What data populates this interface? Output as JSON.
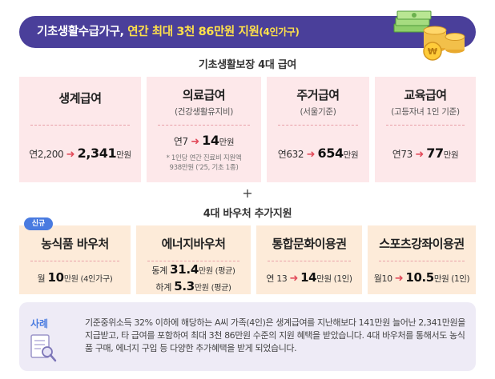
{
  "banner": {
    "title_main": "기초생활수급가구, ",
    "title_highlight": "연간 최대 3천 86만원 지원",
    "title_small": "(4인가구)"
  },
  "section1_title": "기초생활보장 4대 급여",
  "benefits": [
    {
      "title": "생계급여",
      "sub": "",
      "from": "연2,200",
      "to": "2,341",
      "unit": "만원",
      "note": []
    },
    {
      "title": "의료급여",
      "sub": "(건강생활유지비)",
      "from": "연7",
      "to": "14",
      "unit": "만원",
      "note": [
        "* 1인당 연간 진료비 지원액",
        "938만원 ('25, 기초 1종)"
      ]
    },
    {
      "title": "주거급여",
      "sub": "(서울기준)",
      "from": "연632",
      "to": "654",
      "unit": "만원",
      "note": []
    },
    {
      "title": "교육급여",
      "sub": "(고등자녀 1인 기준)",
      "from": "연73",
      "to": "77",
      "unit": "만원",
      "note": []
    }
  ],
  "plus_sign": "+",
  "section2_title": "4대 바우처 추가지원",
  "new_tag": "신규",
  "vouchers": [
    {
      "title": "농식품 바우처",
      "prefix": "월 ",
      "value": "10",
      "unit": "만원",
      "suffix": " (4인가구)"
    },
    {
      "title": "에너지바우처",
      "lines": [
        {
          "prefix": "동계 ",
          "value": "31.4",
          "unit": "만원",
          "suffix": " (평균)"
        },
        {
          "prefix": "하계 ",
          "value": "5.3",
          "unit": "만원",
          "suffix": " (평균)"
        }
      ]
    },
    {
      "title": "통합문화이용권",
      "from": "연 13",
      "to": "14",
      "unit": "만원",
      "suffix": " (1인)"
    },
    {
      "title": "스포츠강좌이용권",
      "from": "월10",
      "to": "10.5",
      "unit": "만원",
      "suffix": " (1인)"
    }
  ],
  "case": {
    "label": "사례",
    "text": "기준중위소득 32% 이하에 해당하는 A씨 가족(4인)은 생계급여를 지난해보다 141만원 늘어난 2,341만원을 지급받고, 타 급여를 포함하여 최대 3천 86만원 수준의 지원 혜택을 받았습니다. 4대 바우처를 통해서도 농식품 구매, 에너지 구입 등 다양한 추가혜택을 받게 되었습니다."
  },
  "colors": {
    "banner": "#4a3f9a",
    "highlight": "#ffe14a",
    "benefit_card": "#fde8ea",
    "voucher_card": "#fdebd9",
    "arrow": "#e24a5a",
    "tag": "#4a7be0",
    "case_bg": "#eeebf6"
  },
  "icons": [
    "money-stack-icon",
    "coin-icon",
    "right-arrow-icon",
    "document-search-icon"
  ]
}
